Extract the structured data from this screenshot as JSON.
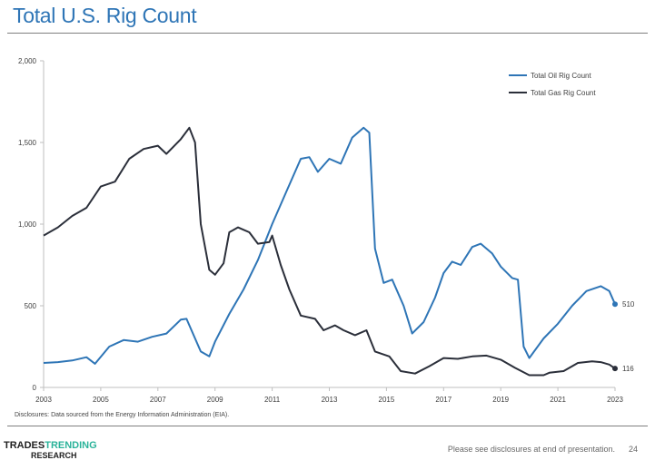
{
  "title": "Total U.S. Rig Count",
  "disclosure": "Disclosures: Data sourced from the Energy Information Administration (EIA).",
  "logo": {
    "part1": "TRADES",
    "part2": "TRENDING",
    "part3": "RESEARCH"
  },
  "footer": "Please see disclosures at end of presentation.",
  "page_number": "24",
  "chart_data": {
    "type": "line",
    "xlim": [
      2003,
      2023
    ],
    "ylim": [
      0,
      2000
    ],
    "x_ticks": [
      "2003",
      "2005",
      "2007",
      "2009",
      "2011",
      "2013",
      "2015",
      "2017",
      "2019",
      "2021",
      "2023"
    ],
    "y_ticks": [
      "0",
      "500",
      "1,000",
      "1,500",
      "2,000"
    ],
    "legend_position": "top-right",
    "grid": false,
    "series": [
      {
        "name": "Total Oil Rig Count",
        "color": "#2e75b6",
        "end_label": "510",
        "points": [
          [
            2003,
            150
          ],
          [
            2003.5,
            155
          ],
          [
            2004,
            165
          ],
          [
            2004.5,
            185
          ],
          [
            2004.8,
            145
          ],
          [
            2005.3,
            250
          ],
          [
            2005.8,
            290
          ],
          [
            2006.3,
            280
          ],
          [
            2006.8,
            310
          ],
          [
            2007.3,
            330
          ],
          [
            2007.8,
            415
          ],
          [
            2008.0,
            420
          ],
          [
            2008.5,
            220
          ],
          [
            2008.8,
            190
          ],
          [
            2009.0,
            280
          ],
          [
            2009.5,
            450
          ],
          [
            2010.0,
            600
          ],
          [
            2010.5,
            780
          ],
          [
            2011.0,
            1000
          ],
          [
            2011.5,
            1200
          ],
          [
            2012.0,
            1400
          ],
          [
            2012.3,
            1410
          ],
          [
            2012.6,
            1320
          ],
          [
            2013.0,
            1400
          ],
          [
            2013.4,
            1370
          ],
          [
            2013.8,
            1530
          ],
          [
            2014.2,
            1590
          ],
          [
            2014.4,
            1560
          ],
          [
            2014.6,
            850
          ],
          [
            2014.9,
            640
          ],
          [
            2015.2,
            660
          ],
          [
            2015.6,
            500
          ],
          [
            2015.9,
            330
          ],
          [
            2016.3,
            400
          ],
          [
            2016.7,
            550
          ],
          [
            2017.0,
            700
          ],
          [
            2017.3,
            770
          ],
          [
            2017.6,
            750
          ],
          [
            2018.0,
            860
          ],
          [
            2018.3,
            880
          ],
          [
            2018.7,
            820
          ],
          [
            2019.0,
            740
          ],
          [
            2019.4,
            670
          ],
          [
            2019.6,
            660
          ],
          [
            2019.8,
            250
          ],
          [
            2020.0,
            180
          ],
          [
            2020.5,
            300
          ],
          [
            2021.0,
            390
          ],
          [
            2021.5,
            500
          ],
          [
            2022.0,
            590
          ],
          [
            2022.5,
            620
          ],
          [
            2022.8,
            590
          ],
          [
            2023.0,
            510
          ]
        ]
      },
      {
        "name": "Total Gas Rig Count",
        "color": "#2b2f3a",
        "end_label": "116",
        "points": [
          [
            2003,
            930
          ],
          [
            2003.5,
            980
          ],
          [
            2004,
            1050
          ],
          [
            2004.5,
            1100
          ],
          [
            2005,
            1230
          ],
          [
            2005.5,
            1260
          ],
          [
            2006,
            1400
          ],
          [
            2006.5,
            1460
          ],
          [
            2007,
            1480
          ],
          [
            2007.3,
            1430
          ],
          [
            2007.8,
            1520
          ],
          [
            2008.1,
            1590
          ],
          [
            2008.3,
            1500
          ],
          [
            2008.5,
            1000
          ],
          [
            2008.8,
            720
          ],
          [
            2009.0,
            690
          ],
          [
            2009.3,
            760
          ],
          [
            2009.5,
            950
          ],
          [
            2009.8,
            980
          ],
          [
            2010.2,
            950
          ],
          [
            2010.5,
            880
          ],
          [
            2010.9,
            890
          ],
          [
            2011.0,
            930
          ],
          [
            2011.3,
            750
          ],
          [
            2011.6,
            600
          ],
          [
            2012.0,
            440
          ],
          [
            2012.5,
            420
          ],
          [
            2012.8,
            350
          ],
          [
            2013.2,
            380
          ],
          [
            2013.5,
            350
          ],
          [
            2013.9,
            320
          ],
          [
            2014.3,
            350
          ],
          [
            2014.6,
            220
          ],
          [
            2015.1,
            190
          ],
          [
            2015.5,
            100
          ],
          [
            2016.0,
            85
          ],
          [
            2016.5,
            130
          ],
          [
            2017.0,
            180
          ],
          [
            2017.5,
            175
          ],
          [
            2018.0,
            190
          ],
          [
            2018.5,
            195
          ],
          [
            2019.0,
            170
          ],
          [
            2019.5,
            120
          ],
          [
            2020.0,
            75
          ],
          [
            2020.5,
            75
          ],
          [
            2020.7,
            90
          ],
          [
            2021.2,
            100
          ],
          [
            2021.7,
            150
          ],
          [
            2022.2,
            160
          ],
          [
            2022.5,
            155
          ],
          [
            2022.8,
            140
          ],
          [
            2023.0,
            116
          ]
        ]
      }
    ]
  }
}
